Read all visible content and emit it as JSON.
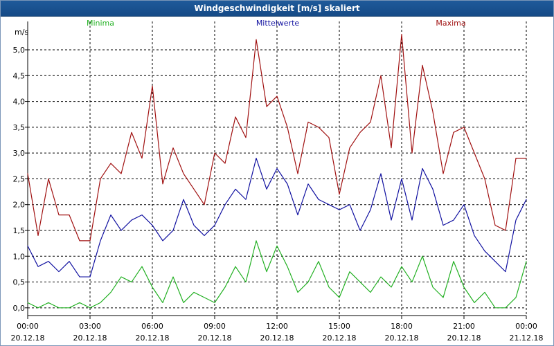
{
  "window": {
    "title": "Windgeschwindigkeit [m/s] skaliert"
  },
  "colors": {
    "min": "#22b022",
    "mean": "#1010a0",
    "max": "#a01010",
    "grid": "#000000",
    "axis": "#000000"
  },
  "chart_data": {
    "type": "line",
    "title": "Windgeschwindigkeit [m/s] skaliert",
    "ylabel": "m/s",
    "ylim": [
      -0.15,
      5.55
    ],
    "xlim_hours": [
      0,
      24
    ],
    "grid": true,
    "legend_placement": "top",
    "ytick_values": [
      0.0,
      0.5,
      1.0,
      1.5,
      2.0,
      2.5,
      3.0,
      3.5,
      4.0,
      4.5,
      5.0
    ],
    "ytick_labels": [
      "0,0",
      "0,5",
      "1,0",
      "1,5",
      "2,0",
      "2,5",
      "3,0",
      "3,5",
      "4,0",
      "4,5",
      "5,0"
    ],
    "xtick_hours": [
      0,
      3,
      6,
      9,
      12,
      15,
      18,
      21,
      24
    ],
    "xtick_time_labels": [
      "00:00",
      "03:00",
      "06:00",
      "09:00",
      "12:00",
      "15:00",
      "18:00",
      "21:00",
      "00:00"
    ],
    "xtick_date_labels": [
      "20.12.18",
      "20.12.18",
      "20.12.18",
      "20.12.18",
      "20.12.18",
      "20.12.18",
      "20.12.18",
      "20.12.18",
      "21.12.18"
    ],
    "series": [
      {
        "name": "Minima",
        "color": "#22b022",
        "x": [
          0,
          0.5,
          1,
          1.5,
          2,
          2.5,
          3,
          3.5,
          4,
          4.5,
          5,
          5.5,
          6,
          6.5,
          7,
          7.5,
          8,
          8.5,
          9,
          9.5,
          10,
          10.5,
          11,
          11.5,
          12,
          12.5,
          13,
          13.5,
          14,
          14.5,
          15,
          15.5,
          16,
          16.5,
          17,
          17.5,
          18,
          18.5,
          19,
          19.5,
          20,
          20.5,
          21,
          21.5,
          22,
          22.5,
          23,
          23.5,
          24
        ],
        "values": [
          0.1,
          0.0,
          0.1,
          0.0,
          0.0,
          0.1,
          0.0,
          0.1,
          0.3,
          0.6,
          0.5,
          0.8,
          0.4,
          0.1,
          0.6,
          0.1,
          0.3,
          0.2,
          0.1,
          0.4,
          0.8,
          0.5,
          1.3,
          0.7,
          1.2,
          0.8,
          0.3,
          0.5,
          0.9,
          0.4,
          0.2,
          0.7,
          0.5,
          0.3,
          0.6,
          0.4,
          0.8,
          0.5,
          1.0,
          0.4,
          0.2,
          0.9,
          0.4,
          0.1,
          0.3,
          0.0,
          0.0,
          0.2,
          0.9
        ]
      },
      {
        "name": "Mittelwerte",
        "color": "#1010a0",
        "x": [
          0,
          0.5,
          1,
          1.5,
          2,
          2.5,
          3,
          3.5,
          4,
          4.5,
          5,
          5.5,
          6,
          6.5,
          7,
          7.5,
          8,
          8.5,
          9,
          9.5,
          10,
          10.5,
          11,
          11.5,
          12,
          12.5,
          13,
          13.5,
          14,
          14.5,
          15,
          15.5,
          16,
          16.5,
          17,
          17.5,
          18,
          18.5,
          19,
          19.5,
          20,
          20.5,
          21,
          21.5,
          22,
          22.5,
          23,
          23.5,
          24
        ],
        "values": [
          1.2,
          0.8,
          0.9,
          0.7,
          0.9,
          0.6,
          0.6,
          1.3,
          1.8,
          1.5,
          1.7,
          1.8,
          1.6,
          1.3,
          1.5,
          2.1,
          1.6,
          1.4,
          1.6,
          2.0,
          2.3,
          2.1,
          2.9,
          2.3,
          2.7,
          2.4,
          1.8,
          2.4,
          2.1,
          2.0,
          1.9,
          2.0,
          1.5,
          1.9,
          2.6,
          1.7,
          2.5,
          1.7,
          2.7,
          2.3,
          1.6,
          1.7,
          2.0,
          1.4,
          1.1,
          0.9,
          0.7,
          1.7,
          2.1
        ]
      },
      {
        "name": "Maxima",
        "color": "#a01010",
        "x": [
          0,
          0.5,
          1,
          1.5,
          2,
          2.5,
          3,
          3.5,
          4,
          4.5,
          5,
          5.5,
          6,
          6.5,
          7,
          7.5,
          8,
          8.5,
          9,
          9.5,
          10,
          10.5,
          11,
          11.5,
          12,
          12.5,
          13,
          13.5,
          14,
          14.5,
          15,
          15.5,
          16,
          16.5,
          17,
          17.5,
          18,
          18.5,
          19,
          19.5,
          20,
          20.5,
          21,
          21.5,
          22,
          22.5,
          23,
          23.5,
          24
        ],
        "values": [
          2.6,
          1.4,
          2.5,
          1.8,
          1.8,
          1.3,
          1.3,
          2.5,
          2.8,
          2.6,
          3.4,
          2.9,
          4.3,
          2.4,
          3.1,
          2.6,
          2.3,
          2.0,
          3.0,
          2.8,
          3.7,
          3.3,
          5.2,
          3.9,
          4.1,
          3.5,
          2.6,
          3.6,
          3.5,
          3.3,
          2.2,
          3.1,
          3.4,
          3.6,
          4.5,
          3.1,
          5.3,
          3.0,
          4.7,
          3.8,
          2.6,
          3.4,
          3.5,
          3.0,
          2.5,
          1.6,
          1.5,
          2.9,
          2.9
        ]
      }
    ]
  }
}
